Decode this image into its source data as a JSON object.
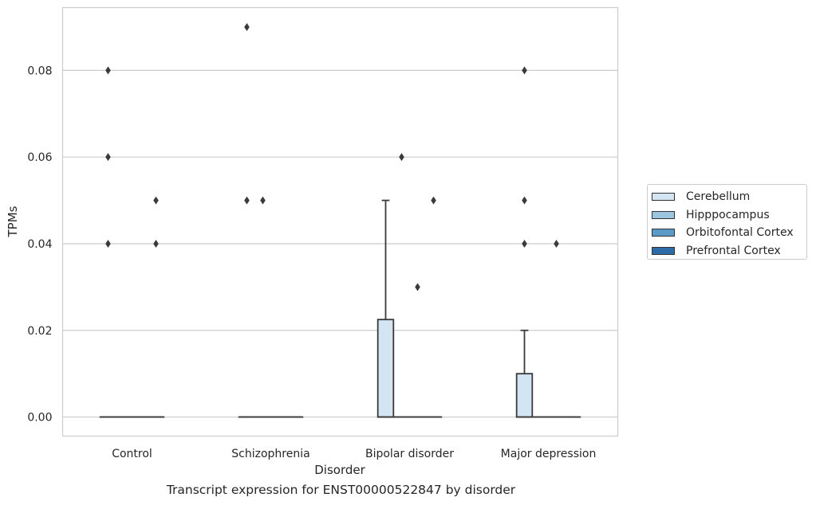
{
  "chart_data": {
    "type": "box",
    "title": "Transcript expression for ENST00000522847 by disorder",
    "xlabel": "Disorder",
    "ylabel": "TPMs",
    "ylim": [
      -0.0044,
      0.0945
    ],
    "yticks": [
      0.0,
      0.02,
      0.04,
      0.06,
      0.08
    ],
    "ytick_labels": [
      "0.00",
      "0.02",
      "0.04",
      "0.06",
      "0.08"
    ],
    "grid": "horizontal",
    "legend_position": "right-outside",
    "categories": [
      "Control",
      "Schizophrenia",
      "Bipolar disorder",
      "Major depression"
    ],
    "series": [
      {
        "name": "Cerebellum",
        "color": "#d3e4f3",
        "boxes": [
          {
            "q1": 0,
            "median": 0,
            "q3": 0,
            "whisker_low": 0,
            "whisker_high": 0,
            "outliers": [
              0.04,
              0.06,
              0.08
            ]
          },
          {
            "q1": 0,
            "median": 0,
            "q3": 0,
            "whisker_low": 0,
            "whisker_high": 0,
            "outliers": [
              0.05,
              0.09
            ]
          },
          {
            "q1": 0,
            "median": 0,
            "q3": 0.0225,
            "whisker_low": 0,
            "whisker_high": 0.05,
            "outliers": []
          },
          {
            "q1": 0,
            "median": 0,
            "q3": 0.01,
            "whisker_low": 0,
            "whisker_high": 0.02,
            "outliers": [
              0.04,
              0.05,
              0.08
            ]
          }
        ]
      },
      {
        "name": "Hipppocampus",
        "color": "#9cc5df",
        "boxes": [
          {
            "q1": 0,
            "median": 0,
            "q3": 0,
            "whisker_low": 0,
            "whisker_high": 0,
            "outliers": []
          },
          {
            "q1": 0,
            "median": 0,
            "q3": 0,
            "whisker_low": 0,
            "whisker_high": 0,
            "outliers": [
              0.05
            ]
          },
          {
            "q1": 0,
            "median": 0,
            "q3": 0,
            "whisker_low": 0,
            "whisker_high": 0,
            "outliers": [
              0.06
            ]
          },
          {
            "q1": 0,
            "median": 0,
            "q3": 0,
            "whisker_low": 0,
            "whisker_high": 0,
            "outliers": []
          }
        ]
      },
      {
        "name": "Orbitofontal Cortex",
        "color": "#5a9ac8",
        "boxes": [
          {
            "q1": 0,
            "median": 0,
            "q3": 0,
            "whisker_low": 0,
            "whisker_high": 0,
            "outliers": []
          },
          {
            "q1": 0,
            "median": 0,
            "q3": 0,
            "whisker_low": 0,
            "whisker_high": 0,
            "outliers": []
          },
          {
            "q1": 0,
            "median": 0,
            "q3": 0,
            "whisker_low": 0,
            "whisker_high": 0,
            "outliers": [
              0.03
            ]
          },
          {
            "q1": 0,
            "median": 0,
            "q3": 0,
            "whisker_low": 0,
            "whisker_high": 0,
            "outliers": [
              0.04
            ]
          }
        ]
      },
      {
        "name": "Prefrontal Cortex",
        "color": "#2d6ba6",
        "boxes": [
          {
            "q1": 0,
            "median": 0,
            "q3": 0,
            "whisker_low": 0,
            "whisker_high": 0,
            "outliers": [
              0.04,
              0.05
            ]
          },
          {
            "q1": 0,
            "median": 0,
            "q3": 0,
            "whisker_low": 0,
            "whisker_high": 0,
            "outliers": []
          },
          {
            "q1": 0,
            "median": 0,
            "q3": 0,
            "whisker_low": 0,
            "whisker_high": 0,
            "outliers": [
              0.05
            ]
          },
          {
            "q1": 0,
            "median": 0,
            "q3": 0,
            "whisker_low": 0,
            "whisker_high": 0,
            "outliers": []
          }
        ]
      }
    ]
  }
}
